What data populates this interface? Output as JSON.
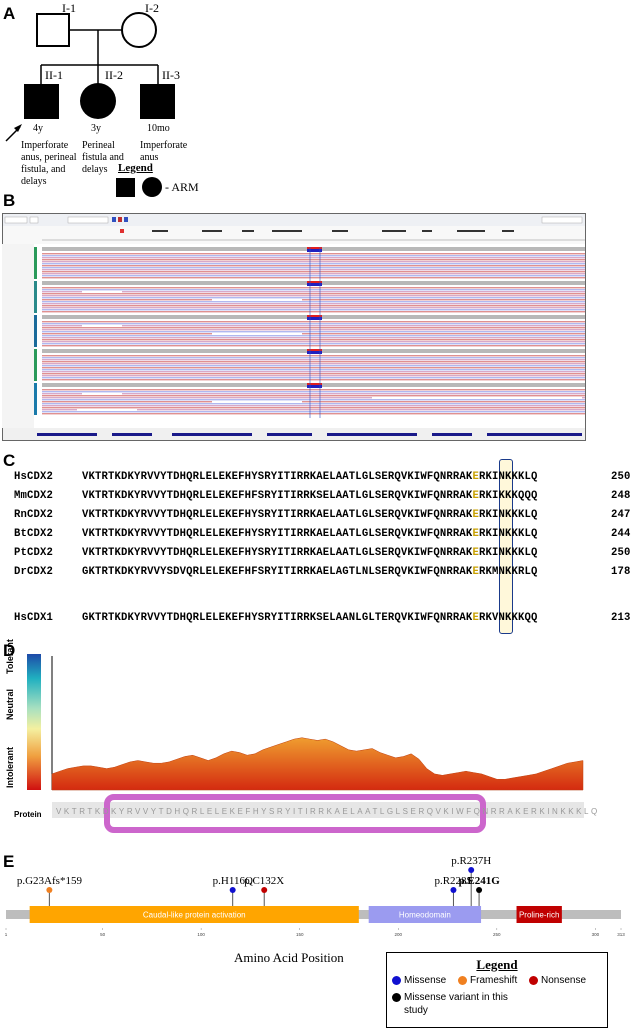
{
  "panels": {
    "a": "A",
    "b": "B",
    "c": "C",
    "d": "D",
    "e": "E"
  },
  "pedigree": {
    "gen1": [
      {
        "id": "I-1",
        "sex": "male",
        "affected": false
      },
      {
        "id": "I-2",
        "sex": "female",
        "affected": false
      }
    ],
    "gen2": [
      {
        "id": "II-1",
        "sex": "male",
        "affected": true,
        "proband": true,
        "age": "4y",
        "note": [
          "Imperforate",
          "anus, perineal",
          "fistula, and",
          "delays"
        ]
      },
      {
        "id": "II-2",
        "sex": "female",
        "affected": true,
        "age": "3y",
        "note": [
          "Perineal",
          "fistula and",
          "delays"
        ]
      },
      {
        "id": "II-3",
        "sex": "male",
        "affected": true,
        "age": "10mo",
        "note": [
          "Imperforate",
          "anus"
        ]
      }
    ],
    "legend_title": "Legend",
    "legend_text": "- ARM"
  },
  "alignment": {
    "rows": [
      {
        "name": "HsCDX2",
        "pre": "VKTRTKDKYRVVYTDHQRLELEKEFHYSRYITIRRKAELAATLGLSERQVKIWFQNRRAK",
        "hl": "E",
        "post": "RKINKKKLQ",
        "len": "250"
      },
      {
        "name": "MmCDX2",
        "pre": "VKTRTKDKYRVVYTDHQRLELEKEFHFSRYITIRRKSELAATLGLSERQVKIWFQNRRAK",
        "hl": "E",
        "post": "RKIKKKQQQ",
        "len": "248"
      },
      {
        "name": "RnCDX2",
        "pre": "VKTRTKDKYRVVYTDHQRLELEKEFHYSRYITIRRKAELAATLGLSERQVKIWFQNRRAK",
        "hl": "E",
        "post": "RKINKKKLQ",
        "len": "247"
      },
      {
        "name": "BtCDX2",
        "pre": "VKTRTKDKYRVVYTDHQRLELEKEFHYSRYITIRRKAELAATLGLSERQVKIWFQNRRAK",
        "hl": "E",
        "post": "RKINKKKLQ",
        "len": "244"
      },
      {
        "name": "PtCDX2",
        "pre": "VKTRTKDKYRVVYTDHQRLELEKEFHYSRYITIRRKAELAATLGLSERQVKIWFQNRRAK",
        "hl": "E",
        "post": "RKINKKKLQ",
        "len": "250"
      },
      {
        "name": "DrCDX2",
        "pre": "GKTRTKDKYRVVYSDVQRLELEKEFHFSRYITIRRKAELAGTLNLSERQVKIWFQNRRAK",
        "hl": "E",
        "post": "RKMNKKRLQ",
        "len": "178"
      },
      {
        "name": "HsCDX1",
        "pre": "GKTRTKDKYRVVYTDHQRLELEKEFHYSRYITIRRKSELAANLGLTERQVKIWFQNRRAK",
        "hl": "E",
        "post": "RKVNKKKQQ",
        "len": "213"
      }
    ]
  },
  "tolerance": {
    "scale_labels": [
      "Tolerant",
      "Neutral",
      "Intolerant"
    ],
    "track_label": "Protein",
    "protein_sequence": "VKTRTKDKYRVVYTDHQRLELEKEFHYSRYITIRRKAELAATLGLSERQVKIWFQNRRAKERKINKKKLQ",
    "profile": [
      0.12,
      0.14,
      0.16,
      0.17,
      0.18,
      0.18,
      0.17,
      0.16,
      0.17,
      0.19,
      0.21,
      0.22,
      0.21,
      0.2,
      0.2,
      0.21,
      0.23,
      0.25,
      0.26,
      0.24,
      0.22,
      0.24,
      0.27,
      0.29,
      0.28,
      0.26,
      0.27,
      0.3,
      0.32,
      0.34,
      0.36,
      0.38,
      0.39,
      0.38,
      0.37,
      0.38,
      0.36,
      0.33,
      0.3,
      0.29,
      0.3,
      0.31,
      0.28,
      0.26,
      0.24,
      0.25,
      0.27,
      0.23,
      0.16,
      0.12,
      0.11,
      0.12,
      0.13,
      0.14,
      0.13,
      0.12,
      0.1,
      0.08,
      0.08,
      0.09,
      0.1,
      0.11,
      0.12,
      0.14,
      0.16,
      0.18,
      0.2,
      0.21,
      0.22
    ]
  },
  "protein_map": {
    "length": 313,
    "axis_title": "Amino Acid Position",
    "ticks": [
      1,
      50,
      100,
      150,
      200,
      250,
      300,
      313
    ],
    "domains": [
      {
        "name": "Caudal-like protein activation",
        "start": 13,
        "end": 180,
        "color": "#ffa500"
      },
      {
        "name": "Homeodomain",
        "start": 185,
        "end": 242,
        "color": "#9b9bf0"
      },
      {
        "name": "Proline-rich",
        "start": 260,
        "end": 283,
        "color": "#c00000"
      }
    ],
    "variants": [
      {
        "label": "p.G23Afs*159",
        "pos": 23,
        "type": "frameshift",
        "height": 16,
        "bold": false
      },
      {
        "label": "p.H116Q",
        "pos": 116,
        "type": "missense",
        "height": 16,
        "bold": false
      },
      {
        "label": "p.C132X",
        "pos": 132,
        "type": "nonsense",
        "height": 16,
        "bold": false
      },
      {
        "label": "p.R228S",
        "pos": 228,
        "type": "missense",
        "height": 16,
        "bold": false
      },
      {
        "label": "p.R237H",
        "pos": 237,
        "type": "missense",
        "height": 36,
        "bold": false
      },
      {
        "label": "p.E241G",
        "pos": 241,
        "type": "study",
        "height": 16,
        "bold": true
      }
    ],
    "legend": {
      "title": "Legend",
      "items": [
        {
          "label": "Missense",
          "color": "#1010d0"
        },
        {
          "label": "Frameshift",
          "color": "#f08020"
        },
        {
          "label": "Nonsense",
          "color": "#c00000"
        },
        {
          "label": "Missense variant in this study",
          "color": "#000000"
        }
      ]
    }
  },
  "colors": {
    "missense": "#1010d0",
    "frameshift": "#f08020",
    "nonsense": "#c00000",
    "study": "#000000"
  }
}
